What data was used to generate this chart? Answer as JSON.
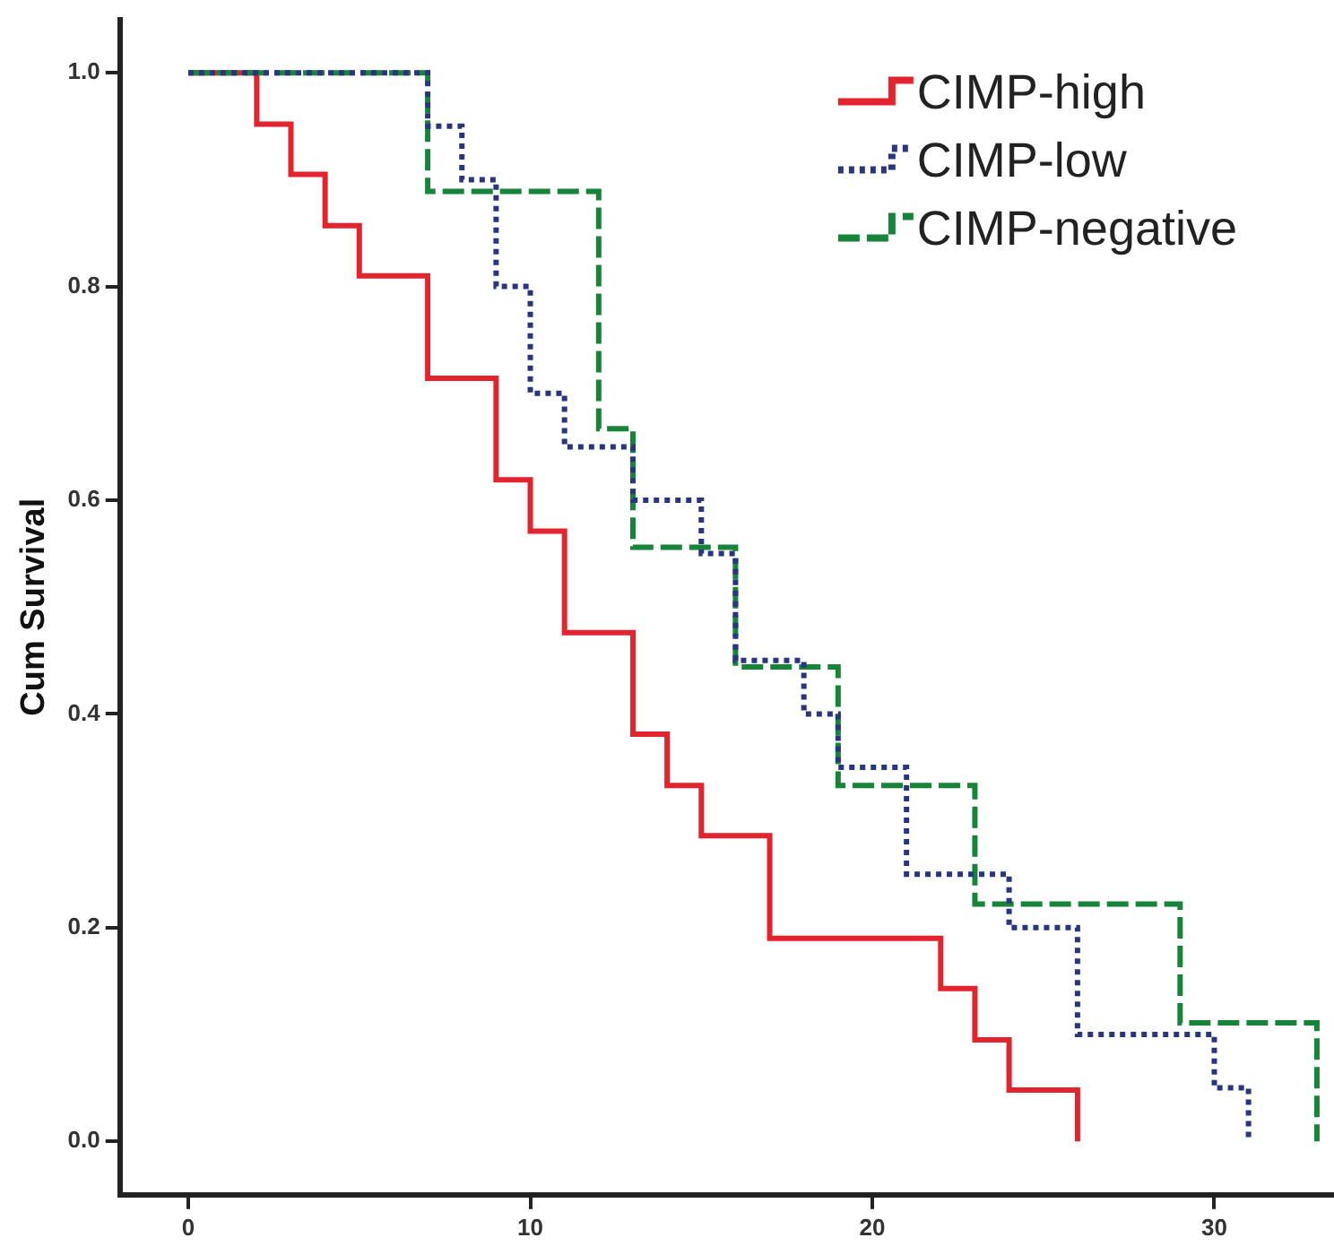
{
  "chart_data": {
    "type": "step",
    "ylabel": "Cum Survival",
    "xlim": [
      -2,
      33.5
    ],
    "ylim": [
      -0.05,
      1.05
    ],
    "xticks": [
      0,
      10,
      20,
      30
    ],
    "yticks": [
      {
        "value": 0,
        "label": "0.0"
      },
      {
        "value": 0.2,
        "label": "0.2"
      },
      {
        "value": 0.4,
        "label": "0.4"
      },
      {
        "value": 0.6,
        "label": "0.6"
      },
      {
        "value": 0.8,
        "label": "0.8"
      },
      {
        "value": 1,
        "label": "1.0"
      }
    ],
    "grid": false,
    "legend": "top right",
    "marker": "none",
    "series": [
      {
        "name": "CIMP-high",
        "color": "#e3232e",
        "line_style": "solid",
        "x": [
          0,
          2,
          3,
          4,
          5,
          7,
          9,
          10,
          11,
          13,
          14,
          15,
          17,
          22,
          23,
          24,
          26
        ],
        "values": [
          1,
          0.952,
          0.905,
          0.857,
          0.81,
          0.714,
          0.619,
          0.571,
          0.476,
          0.381,
          0.333,
          0.286,
          0.19,
          0.143,
          0.095,
          0.048,
          0
        ]
      },
      {
        "name": "CIMP-low",
        "color": "#2a3580",
        "line_style": "dotted",
        "x": [
          0,
          7,
          8,
          9,
          10,
          11,
          13,
          15,
          16,
          18,
          19,
          21,
          24,
          26,
          30,
          31
        ],
        "values": [
          1,
          0.95,
          0.9,
          0.8,
          0.7,
          0.65,
          0.6,
          0.55,
          0.45,
          0.4,
          0.35,
          0.25,
          0.2,
          0.1,
          0.05,
          0
        ]
      },
      {
        "name": "CIMP-negative",
        "color": "#17843a",
        "line_style": "dashed",
        "x": [
          0,
          7,
          12,
          13,
          16,
          19,
          23,
          29,
          33
        ],
        "values": [
          1,
          0.889,
          0.667,
          0.556,
          0.444,
          0.333,
          0.222,
          0.111,
          0
        ]
      }
    ]
  }
}
